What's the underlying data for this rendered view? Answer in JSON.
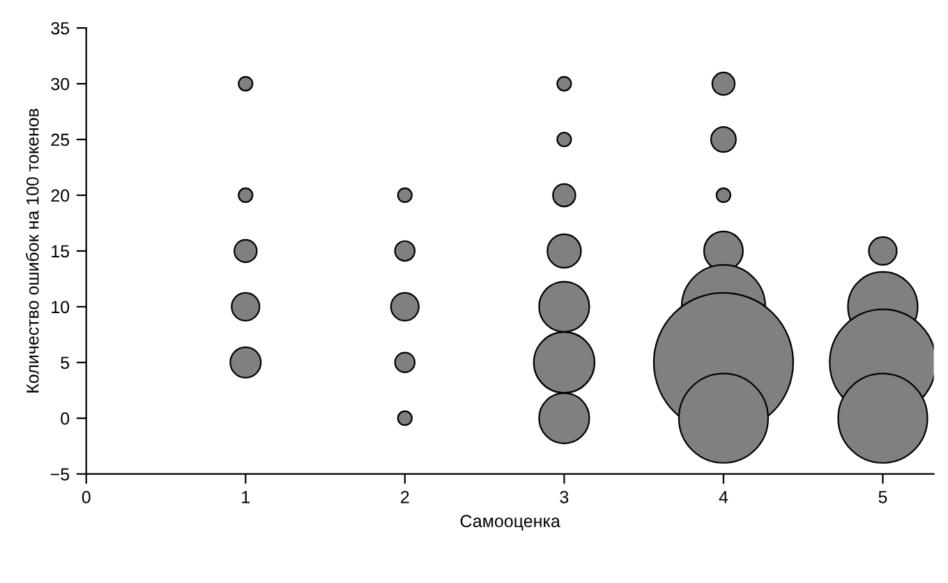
{
  "chart_data": {
    "type": "bubble",
    "xlabel": "Самооценка",
    "ylabel": "Количество ошибок на 100 токенов",
    "xlim": [
      0,
      5.32
    ],
    "xticks": [
      0,
      1,
      2,
      3,
      4,
      5
    ],
    "ylim": [
      -5,
      35
    ],
    "yticks": [
      {
        "value": -5,
        "label": "−5"
      },
      0,
      5,
      10,
      15,
      20,
      25,
      30,
      35
    ],
    "grid": false,
    "legend": false,
    "series": [
      {
        "color": "#808080",
        "x": [
          1,
          1,
          1,
          1,
          1,
          2,
          2,
          2,
          2,
          2,
          3,
          3,
          3,
          3,
          3,
          3,
          3,
          4,
          4,
          4,
          4,
          4,
          4,
          4,
          5,
          5,
          5,
          5
        ],
        "values": [
          30,
          20,
          15,
          10,
          5,
          20,
          15,
          10,
          5,
          0,
          30,
          25,
          20,
          15,
          10,
          5,
          0,
          30,
          25,
          20,
          15,
          10,
          5,
          0,
          15,
          10,
          5,
          0
        ],
        "sizes": [
          0.01,
          0.01,
          0.026,
          0.04,
          0.048,
          0.01,
          0.02,
          0.04,
          0.02,
          0.01,
          0.01,
          0.01,
          0.026,
          0.058,
          0.13,
          0.19,
          0.13,
          0.026,
          0.032,
          0.01,
          0.078,
          0.36,
          1,
          0.41,
          0.04,
          0.25,
          0.58,
          0.41
        ]
      }
    ]
  }
}
